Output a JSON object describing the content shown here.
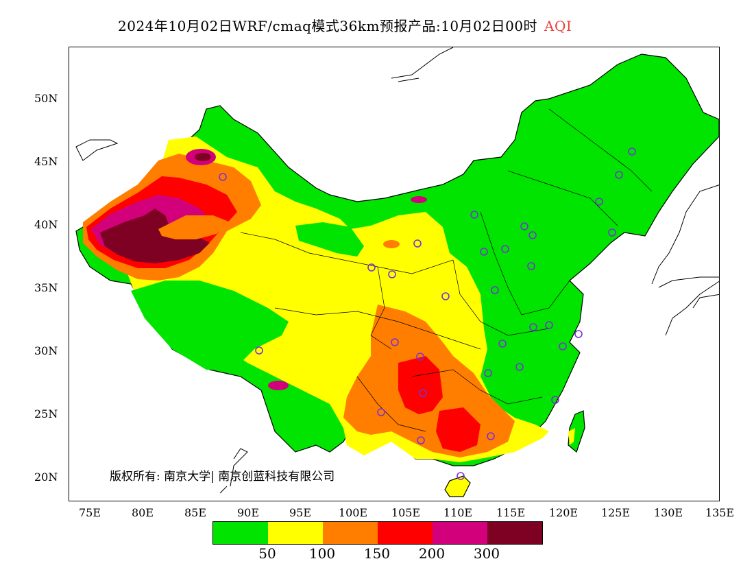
{
  "title": {
    "main": "2024年10月02日WRF/cmaq模式36km预报产品:10月02日00时",
    "variable": "AQI"
  },
  "map": {
    "lat_labels": [
      "50N",
      "45N",
      "40N",
      "35N",
      "30N",
      "25N",
      "20N"
    ],
    "lon_labels": [
      "75E",
      "80E",
      "85E",
      "90E",
      "95E",
      "100E",
      "105E",
      "110E",
      "115E",
      "120E",
      "125E",
      "130E",
      "135E"
    ],
    "colors": {
      "good": "#00e400",
      "moderate": "#ffff00",
      "usg": "#ff7e00",
      "unhealthy": "#ff0000",
      "very_unhealthy": "#d2007a",
      "hazardous": "#7e0023",
      "station": "#7a30d8",
      "boundary": "#000000"
    }
  },
  "copyright": "版权所有: 南京大学| 南京创蓝科技有限公司",
  "legend": {
    "colors": [
      "#00e400",
      "#ffff00",
      "#ff7e00",
      "#ff0000",
      "#d2007a",
      "#7e0023"
    ],
    "labels": [
      "50",
      "100",
      "150",
      "200",
      "300"
    ]
  }
}
